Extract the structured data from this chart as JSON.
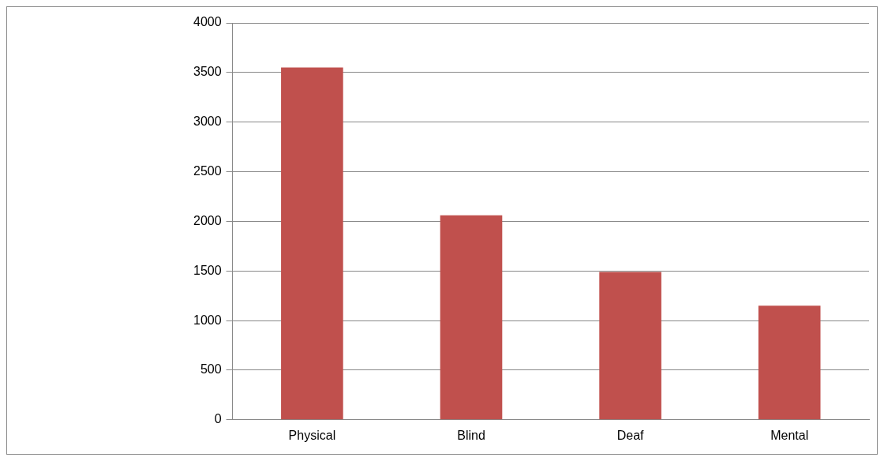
{
  "chart_data": {
    "type": "bar",
    "categories": [
      "Physical",
      "Blind",
      "Deaf",
      "Mental"
    ],
    "values": [
      3550,
      2060,
      1490,
      1150
    ],
    "color": "#c0504d",
    "ylim": [
      0,
      4000
    ],
    "yticks": [
      0,
      500,
      1000,
      1500,
      2000,
      2500,
      3000,
      3500,
      4000
    ],
    "grid": "y",
    "legend": false
  }
}
